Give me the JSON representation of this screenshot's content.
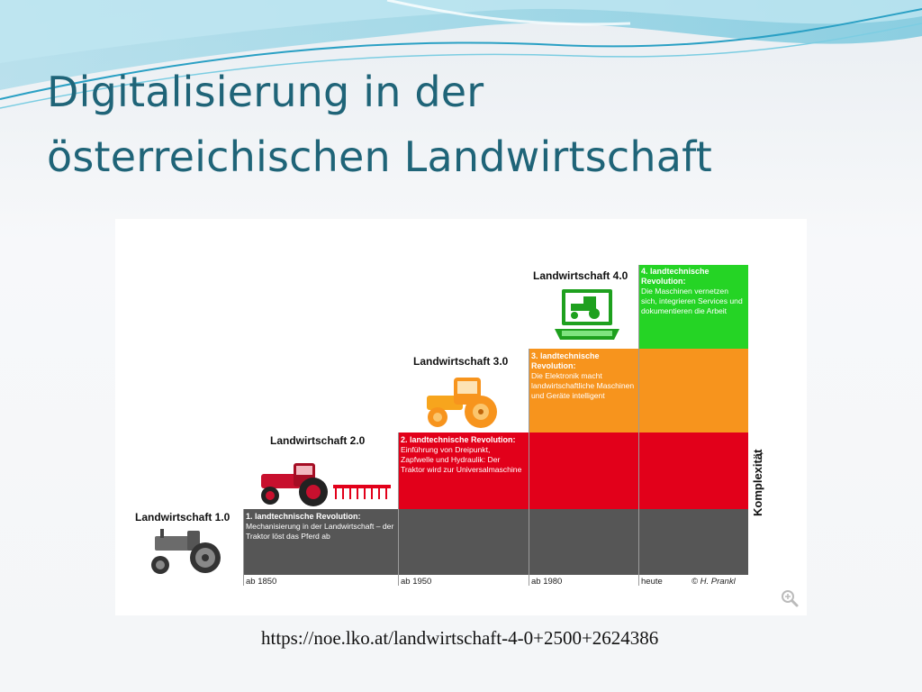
{
  "slide": {
    "title_line1": "Digitalisierung in der",
    "title_line2": "österreichischen Landwirtschaft",
    "source_url": "https://noe.lko.at/landwirtschaft-4-0+2500+2624386"
  },
  "diagram": {
    "stages": [
      {
        "label": "Landwirtschaft 1.0",
        "icon": "vintage-tractor-icon",
        "color": "#565656"
      },
      {
        "label": "Landwirtschaft 2.0",
        "icon": "red-tractor-with-harrow-icon",
        "color": "#e2001a"
      },
      {
        "label": "Landwirtschaft 3.0",
        "icon": "modern-tractor-icon",
        "color": "#f7941d"
      },
      {
        "label": "Landwirtschaft 4.0",
        "icon": "laptop-tractor-icon",
        "color": "#25d425"
      }
    ],
    "revolutions": [
      {
        "heading": "1. landtechnische Revolution:",
        "text": "Mechanisierung in der Landwirtschaft – der Traktor löst das Pferd ab"
      },
      {
        "heading": "2. landtechnische Revolution:",
        "text": "Einführung von Dreipunkt, Zapfwelle und Hydraulik: Der Traktor wird zur Universalmaschine"
      },
      {
        "heading": "3. landtechnische Revolution:",
        "text": "Die Elektronik macht landwirtschaftliche Maschinen und Geräte intelligent"
      },
      {
        "heading": "4. landtechnische Revolution:",
        "text": "Die Maschinen vernetzen sich, integrieren Services und dokumentieren die Arbeit"
      }
    ],
    "eras": [
      "ab 1850",
      "ab 1950",
      "ab 1980",
      "heute"
    ],
    "credit": "© H. Prankl",
    "axis_label": "Komplexität",
    "axis_arrow": "↑"
  }
}
